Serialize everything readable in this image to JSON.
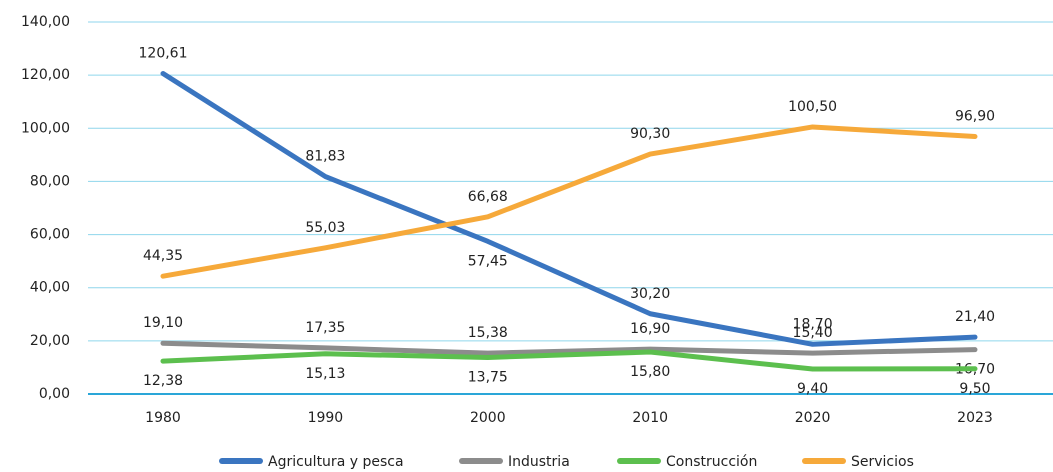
{
  "chart_data": {
    "type": "line",
    "categories": [
      "1980",
      "1990",
      "2000",
      "2010",
      "2020",
      "2023"
    ],
    "series": [
      {
        "name": "Agricultura y pesca",
        "color": "#3a75c0",
        "values": [
          120.61,
          81.83,
          57.45,
          30.2,
          18.7,
          21.4
        ],
        "value_labels": [
          "120,61",
          "81,83",
          "57,45",
          "30,20",
          "18,70",
          "21,40"
        ]
      },
      {
        "name": "Industria",
        "color": "#8c8c8c",
        "values": [
          19.1,
          17.35,
          15.38,
          16.9,
          15.4,
          16.7
        ],
        "value_labels": [
          "19,10",
          "17,35",
          "15,38",
          "16,90",
          "15,40",
          "16,70"
        ]
      },
      {
        "name": "Construcción",
        "color": "#5cbf4e",
        "values": [
          12.38,
          15.13,
          13.75,
          15.8,
          9.4,
          9.5
        ],
        "value_labels": [
          "12,38",
          "15,13",
          "13,75",
          "15,80",
          "9,40",
          "9,50"
        ]
      },
      {
        "name": "Servicios",
        "color": "#f6a93a",
        "values": [
          44.35,
          55.03,
          66.68,
          90.3,
          100.5,
          96.9
        ],
        "value_labels": [
          "44,35",
          "55,03",
          "66,68",
          "90,30",
          "100,50",
          "96,90"
        ]
      }
    ],
    "ylim": [
      0,
      140
    ],
    "yticks": [
      {
        "value": 0,
        "label": "0,00"
      },
      {
        "value": 20,
        "label": "20,00"
      },
      {
        "value": 40,
        "label": "40,00"
      },
      {
        "value": 60,
        "label": "60,00"
      },
      {
        "value": 80,
        "label": "80,00"
      },
      {
        "value": 100,
        "label": "100,00"
      },
      {
        "value": 120,
        "label": "120,00"
      },
      {
        "value": 140,
        "label": "140,00"
      }
    ],
    "grid": true,
    "legend": "bottom"
  }
}
